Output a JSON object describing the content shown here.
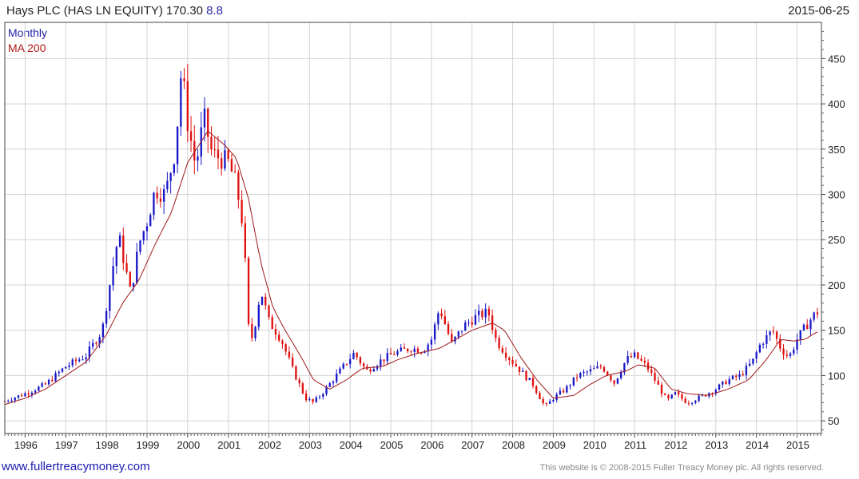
{
  "header": {
    "title": "Hays PLC (HAS LN EQUITY) 170.30",
    "change": "8.8",
    "date": "2015-06-25"
  },
  "legend": {
    "monthly": "Monthly",
    "ma": "MA 200"
  },
  "footer": {
    "website": "www.fullertreacymoney.com",
    "copyright": "This website is © 2008-2015 Fuller Treacy Money plc. All rights reserved."
  },
  "colors": {
    "up": "#1818c8",
    "down": "#e01010",
    "ma": "#a01818",
    "grid": "#d4d4d4"
  },
  "chart_data": {
    "type": "candlestick",
    "title": "Hays PLC (HAS LN EQUITY) 170.30",
    "frequency": "monthly",
    "y_ticks": [
      50,
      100,
      150,
      200,
      250,
      300,
      350,
      400,
      450
    ],
    "x_ticks": [
      "1996",
      "1997",
      "1998",
      "1999",
      "2000",
      "2001",
      "2002",
      "2003",
      "2004",
      "2005",
      "2006",
      "2007",
      "2008",
      "2009",
      "2010",
      "2011",
      "2012",
      "2013",
      "2014",
      "2015"
    ],
    "ylim": [
      38,
      480
    ],
    "xlim": [
      1995.5,
      2015.6
    ],
    "grid": true,
    "series": [
      {
        "name": "Monthly",
        "approx_close_points": [
          [
            1995.5,
            72
          ],
          [
            1996.0,
            80
          ],
          [
            1996.5,
            90
          ],
          [
            1997.0,
            110
          ],
          [
            1997.5,
            122
          ],
          [
            1997.9,
            150
          ],
          [
            1998.1,
            205
          ],
          [
            1998.3,
            255
          ],
          [
            1998.6,
            190
          ],
          [
            1998.8,
            245
          ],
          [
            1999.0,
            270
          ],
          [
            1999.2,
            305
          ],
          [
            1999.45,
            300
          ],
          [
            1999.7,
            350
          ],
          [
            1999.85,
            440
          ],
          [
            2000.0,
            380
          ],
          [
            2000.2,
            330
          ],
          [
            2000.4,
            385
          ],
          [
            2000.6,
            345
          ],
          [
            2000.8,
            340
          ],
          [
            2001.0,
            335
          ],
          [
            2001.2,
            310
          ],
          [
            2001.4,
            255
          ],
          [
            2001.45,
            160
          ],
          [
            2001.6,
            140
          ],
          [
            2001.8,
            195
          ],
          [
            2002.0,
            160
          ],
          [
            2002.3,
            140
          ],
          [
            2002.6,
            105
          ],
          [
            2002.9,
            75
          ],
          [
            2003.1,
            70
          ],
          [
            2003.4,
            85
          ],
          [
            2003.8,
            108
          ],
          [
            2004.1,
            125
          ],
          [
            2004.4,
            105
          ],
          [
            2004.8,
            118
          ],
          [
            2005.1,
            125
          ],
          [
            2005.5,
            130
          ],
          [
            2005.8,
            128
          ],
          [
            2006.0,
            140
          ],
          [
            2006.2,
            175
          ],
          [
            2006.5,
            135
          ],
          [
            2006.8,
            155
          ],
          [
            2007.1,
            165
          ],
          [
            2007.4,
            170
          ],
          [
            2007.6,
            138
          ],
          [
            2007.9,
            120
          ],
          [
            2008.2,
            105
          ],
          [
            2008.5,
            90
          ],
          [
            2008.8,
            65
          ],
          [
            2009.0,
            75
          ],
          [
            2009.3,
            85
          ],
          [
            2009.6,
            100
          ],
          [
            2009.9,
            105
          ],
          [
            2010.2,
            110
          ],
          [
            2010.5,
            92
          ],
          [
            2010.8,
            118
          ],
          [
            2011.0,
            122
          ],
          [
            2011.3,
            110
          ],
          [
            2011.5,
            95
          ],
          [
            2011.8,
            72
          ],
          [
            2012.0,
            80
          ],
          [
            2012.3,
            70
          ],
          [
            2012.7,
            78
          ],
          [
            2013.0,
            85
          ],
          [
            2013.3,
            95
          ],
          [
            2013.6,
            100
          ],
          [
            2013.9,
            115
          ],
          [
            2014.1,
            135
          ],
          [
            2014.4,
            150
          ],
          [
            2014.6,
            130
          ],
          [
            2014.8,
            120
          ],
          [
            2015.0,
            140
          ],
          [
            2015.3,
            160
          ],
          [
            2015.48,
            170.3
          ]
        ]
      },
      {
        "name": "MA 200",
        "approx_points": [
          [
            1995.5,
            68
          ],
          [
            1996.0,
            75
          ],
          [
            1996.5,
            85
          ],
          [
            1997.0,
            100
          ],
          [
            1997.5,
            115
          ],
          [
            1998.0,
            145
          ],
          [
            1998.4,
            180
          ],
          [
            1998.8,
            205
          ],
          [
            1999.2,
            245
          ],
          [
            1999.6,
            280
          ],
          [
            2000.0,
            335
          ],
          [
            2000.5,
            370
          ],
          [
            2000.9,
            355
          ],
          [
            2001.2,
            340
          ],
          [
            2001.5,
            295
          ],
          [
            2001.8,
            225
          ],
          [
            2002.1,
            175
          ],
          [
            2002.4,
            150
          ],
          [
            2002.8,
            120
          ],
          [
            2003.1,
            95
          ],
          [
            2003.5,
            85
          ],
          [
            2003.9,
            95
          ],
          [
            2004.3,
            108
          ],
          [
            2004.8,
            110
          ],
          [
            2005.2,
            118
          ],
          [
            2005.7,
            125
          ],
          [
            2006.2,
            130
          ],
          [
            2006.6,
            140
          ],
          [
            2007.0,
            150
          ],
          [
            2007.5,
            158
          ],
          [
            2007.8,
            150
          ],
          [
            2008.2,
            120
          ],
          [
            2008.6,
            95
          ],
          [
            2009.0,
            75
          ],
          [
            2009.5,
            78
          ],
          [
            2009.9,
            90
          ],
          [
            2010.3,
            100
          ],
          [
            2010.8,
            105
          ],
          [
            2011.1,
            112
          ],
          [
            2011.5,
            108
          ],
          [
            2011.9,
            85
          ],
          [
            2012.3,
            80
          ],
          [
            2012.8,
            78
          ],
          [
            2013.3,
            85
          ],
          [
            2013.8,
            95
          ],
          [
            2014.2,
            115
          ],
          [
            2014.6,
            140
          ],
          [
            2014.9,
            138
          ],
          [
            2015.2,
            140
          ],
          [
            2015.48,
            148
          ]
        ]
      }
    ]
  }
}
